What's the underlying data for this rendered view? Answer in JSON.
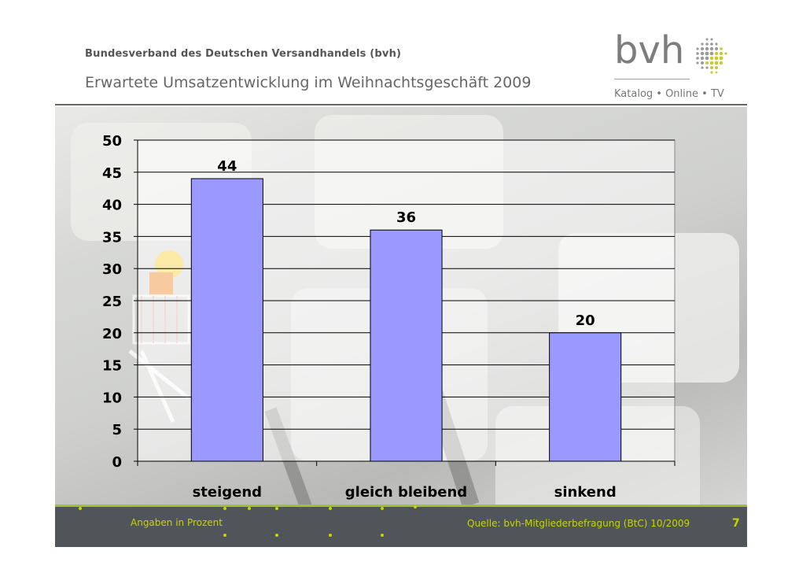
{
  "header": {
    "organization": "Bundesverband des Deutschen Versandhandels (bvh)",
    "title": "Erwartete Umsatzentwicklung im Weihnachtsgeschäft 2009"
  },
  "logo": {
    "word": "bvh",
    "tagline": "Katalog • Online • TV"
  },
  "chart_data": {
    "type": "bar",
    "categories": [
      "steigend",
      "gleich bleibend",
      "sinkend"
    ],
    "values": [
      44,
      36,
      20
    ],
    "data_labels": [
      "44",
      "36",
      "20"
    ],
    "ylim": [
      0,
      50
    ],
    "yticks": [
      0,
      5,
      10,
      15,
      20,
      25,
      30,
      35,
      40,
      45,
      50
    ],
    "grid": true,
    "bar_color": "#9999ff",
    "title": "",
    "xlabel": "",
    "ylabel": ""
  },
  "footer": {
    "note": "Angaben in Prozent",
    "source": "Quelle: bvh-Mitgliederbefragung (BtC) 10/2009",
    "page": "7"
  },
  "colors": {
    "accent_green": "#9fbf36",
    "footer_text": "#c9d400",
    "footer_bg": "#4f5558"
  }
}
